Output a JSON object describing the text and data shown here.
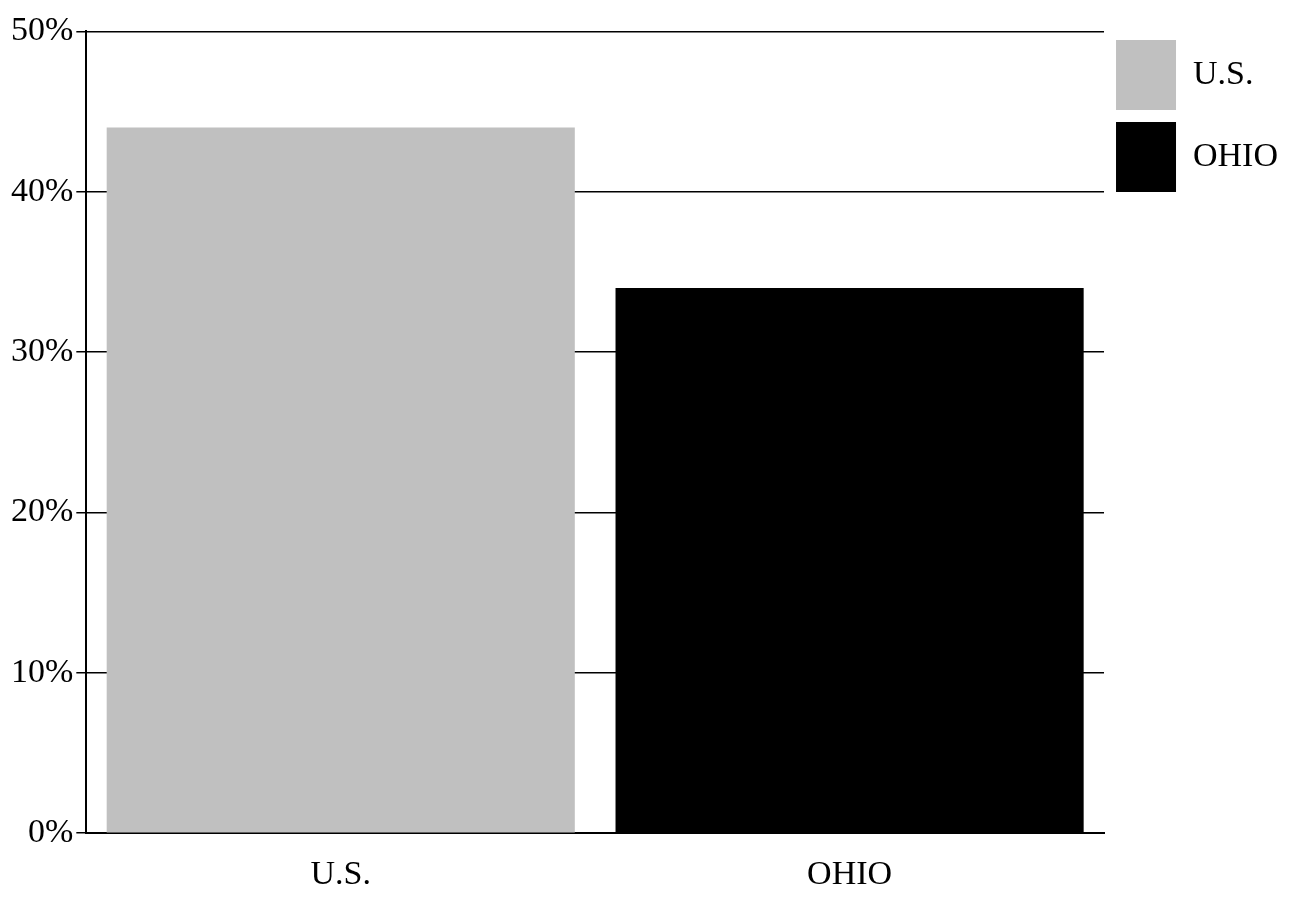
{
  "chart_data": {
    "type": "bar",
    "categories": [
      "U.S.",
      "OHIO"
    ],
    "series": [
      {
        "name": "U.S.",
        "color": "#c0c0c0",
        "values": [
          44,
          null
        ]
      },
      {
        "name": "OHIO",
        "color": "#000000",
        "values": [
          null,
          34
        ]
      }
    ],
    "ylim": [
      0,
      50
    ],
    "yticks": [
      {
        "value": 0,
        "label": "0%"
      },
      {
        "value": 10,
        "label": "10%"
      },
      {
        "value": 20,
        "label": "20%"
      },
      {
        "value": 30,
        "label": "30%"
      },
      {
        "value": 40,
        "label": "40%"
      },
      {
        "value": 50,
        "label": "50%"
      }
    ],
    "grid": "y",
    "legend": "top right"
  }
}
